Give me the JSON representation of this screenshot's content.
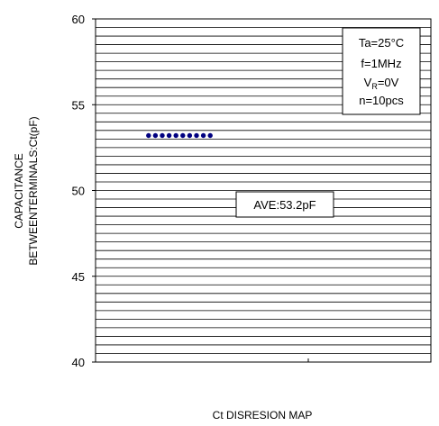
{
  "chart_data": {
    "type": "scatter",
    "title": "",
    "xlabel": "Ct DISRESION MAP",
    "ylabel_lines": [
      "CAPACITANCE",
      "BETWEENTERMINALS:Ct(pF)"
    ],
    "ylim": [
      40,
      60
    ],
    "yticks": [
      "40",
      "45",
      "50",
      "55",
      "60"
    ],
    "grid": true,
    "grid_step": 0.5,
    "x_categories": 2,
    "series": [
      {
        "values": [
          53.2,
          53.2,
          53.2,
          53.2,
          53.2,
          53.2,
          53.2,
          53.2,
          53.2,
          53.2
        ],
        "color": "#000080"
      }
    ],
    "conditions": {
      "ta": "Ta=25°C",
      "f": "f=1MHz",
      "vr_main": "V",
      "vr_sub": "R",
      "vr_rest": "=0V",
      "n": "n=10pcs"
    },
    "average_label": "AVE:53.2pF"
  }
}
